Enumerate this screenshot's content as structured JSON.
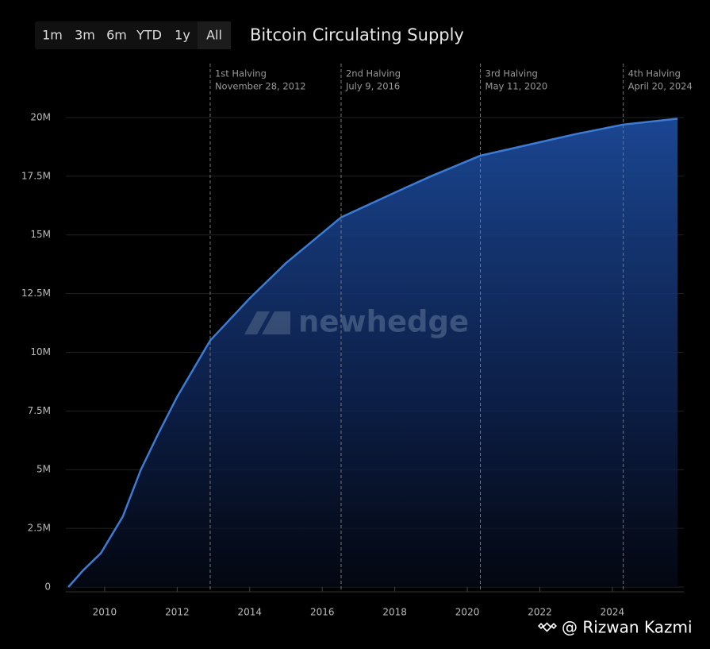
{
  "chart_data": {
    "type": "area",
    "title": "Bitcoin Circulating Supply",
    "range_buttons": [
      "1m",
      "3m",
      "6m",
      "YTD",
      "1y",
      "All"
    ],
    "watermark": "newhedge",
    "credit": "@ Rizwan Kazmi",
    "color": "#3d7bd4",
    "x": [
      2009.0,
      2009.4,
      2009.9,
      2010.5,
      2011.0,
      2011.5,
      2012.0,
      2012.91,
      2014.0,
      2015.0,
      2016.52,
      2018.0,
      2019.0,
      2020.36,
      2022.0,
      2023.0,
      2024.3,
      2025.8
    ],
    "values": [
      0,
      700000,
      1450000,
      3000000,
      5000000,
      6600000,
      8100000,
      10500000,
      12300000,
      13800000,
      15750000,
      16800000,
      17500000,
      18375000,
      18950000,
      19300000,
      19700000,
      19950000
    ],
    "xlim": [
      2008.93,
      2025.97
    ],
    "xticks": [
      2010,
      2012,
      2014,
      2016,
      2018,
      2020,
      2022,
      2024
    ],
    "ylim": [
      0,
      22300000
    ],
    "yticks": [
      0,
      {
        "value": 2500000,
        "label": "2.5M"
      },
      {
        "value": 5000000,
        "label": "5M"
      },
      {
        "value": 7500000,
        "label": "7.5M"
      },
      {
        "value": 10000000,
        "label": "10M"
      },
      {
        "value": 12500000,
        "label": "12.5M"
      },
      {
        "value": 15000000,
        "label": "15M"
      },
      {
        "value": 17500000,
        "label": "17.5M"
      },
      {
        "value": 20000000,
        "label": "20M"
      }
    ],
    "grid": true,
    "halvings": [
      {
        "x": 2012.91,
        "label": "1st Halving",
        "date": "November 28, 2012"
      },
      {
        "x": 2016.52,
        "label": "2nd Halving",
        "date": "July 9, 2016"
      },
      {
        "x": 2020.36,
        "label": "3rd Halving",
        "date": "May 11, 2020"
      },
      {
        "x": 2024.3,
        "label": "4th Halving",
        "date": "April 20, 2024"
      }
    ]
  }
}
